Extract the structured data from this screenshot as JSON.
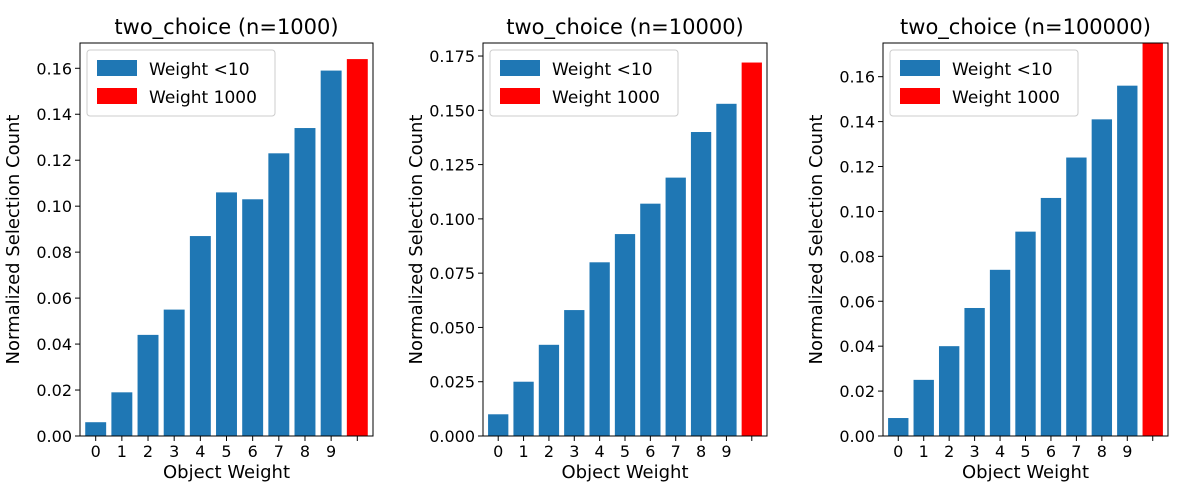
{
  "chart_data": [
    {
      "type": "bar",
      "title": "two_choice (n=1000)",
      "xlabel": "Object Weight",
      "ylabel": "Normalized Selection Count",
      "categories": [
        "0",
        "1",
        "2",
        "3",
        "4",
        "5",
        "6",
        "7",
        "8",
        "9",
        ""
      ],
      "ylim": [
        0,
        0.171
      ],
      "yticks": [
        "0.00",
        "0.02",
        "0.04",
        "0.06",
        "0.08",
        "0.10",
        "0.12",
        "0.14",
        "0.16"
      ],
      "series": [
        {
          "name": "Weight <10",
          "color": "#1f77b4",
          "values": [
            0.006,
            0.019,
            0.044,
            0.055,
            0.087,
            0.106,
            0.103,
            0.123,
            0.134,
            0.159,
            null
          ]
        },
        {
          "name": "Weight 1000",
          "color": "#ff0000",
          "values": [
            null,
            null,
            null,
            null,
            null,
            null,
            null,
            null,
            null,
            null,
            0.164
          ]
        }
      ],
      "legend": "top-left"
    },
    {
      "type": "bar",
      "title": "two_choice (n=10000)",
      "xlabel": "Object Weight",
      "ylabel": "Normalized Selection Count",
      "categories": [
        "0",
        "1",
        "2",
        "3",
        "4",
        "5",
        "6",
        "7",
        "8",
        "9",
        ""
      ],
      "ylim": [
        0,
        0.181
      ],
      "yticks": [
        "0.000",
        "0.025",
        "0.050",
        "0.075",
        "0.100",
        "0.125",
        "0.150",
        "0.175"
      ],
      "series": [
        {
          "name": "Weight <10",
          "color": "#1f77b4",
          "values": [
            0.01,
            0.025,
            0.042,
            0.058,
            0.08,
            0.093,
            0.107,
            0.119,
            0.14,
            0.153,
            null
          ]
        },
        {
          "name": "Weight 1000",
          "color": "#ff0000",
          "values": [
            null,
            null,
            null,
            null,
            null,
            null,
            null,
            null,
            null,
            null,
            0.172
          ]
        }
      ],
      "legend": "top-left"
    },
    {
      "type": "bar",
      "title": "two_choice (n=100000)",
      "xlabel": "Object Weight",
      "ylabel": "Normalized Selection Count",
      "categories": [
        "0",
        "1",
        "2",
        "3",
        "4",
        "5",
        "6",
        "7",
        "8",
        "9",
        ""
      ],
      "ylim": [
        0,
        0.175
      ],
      "yticks": [
        "0.00",
        "0.02",
        "0.04",
        "0.06",
        "0.08",
        "0.10",
        "0.12",
        "0.14",
        "0.16"
      ],
      "series": [
        {
          "name": "Weight <10",
          "color": "#1f77b4",
          "values": [
            0.008,
            0.025,
            0.04,
            0.057,
            0.074,
            0.091,
            0.106,
            0.124,
            0.141,
            0.156,
            null
          ]
        },
        {
          "name": "Weight 1000",
          "color": "#ff0000",
          "values": [
            null,
            null,
            null,
            null,
            null,
            null,
            null,
            null,
            null,
            null,
            0.18
          ]
        }
      ],
      "legend": "top-left"
    }
  ]
}
